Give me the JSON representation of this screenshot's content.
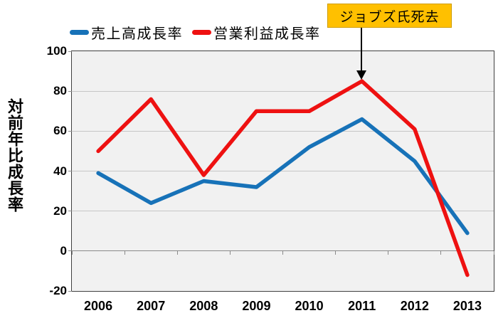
{
  "chart_data": {
    "type": "line",
    "title": "",
    "categories": [
      "2006",
      "2007",
      "2008",
      "2009",
      "2010",
      "2011",
      "2012",
      "2013"
    ],
    "series": [
      {
        "name": "売上高成長率",
        "color": "#1772B8",
        "values": [
          39,
          24,
          35,
          32,
          52,
          66,
          45,
          9
        ]
      },
      {
        "name": "営業利益成長率",
        "color": "#EE1111",
        "values": [
          50,
          76,
          38,
          70,
          70,
          85,
          61,
          -12
        ]
      }
    ],
    "xlabel": "",
    "ylabel": "対前年比成長率",
    "ylim": [
      -20,
      100
    ],
    "y_ticks": [
      100,
      80,
      60,
      40,
      20,
      0,
      -20
    ],
    "grid": true,
    "legend_position": "top",
    "plot_background": "#F1F1F1",
    "annotation": {
      "text": "ジョブズ氏死去",
      "box_color": "#FFC000",
      "arrow_points_to": {
        "category": "2011",
        "series": "営業利益成長率",
        "value": 85
      }
    }
  }
}
